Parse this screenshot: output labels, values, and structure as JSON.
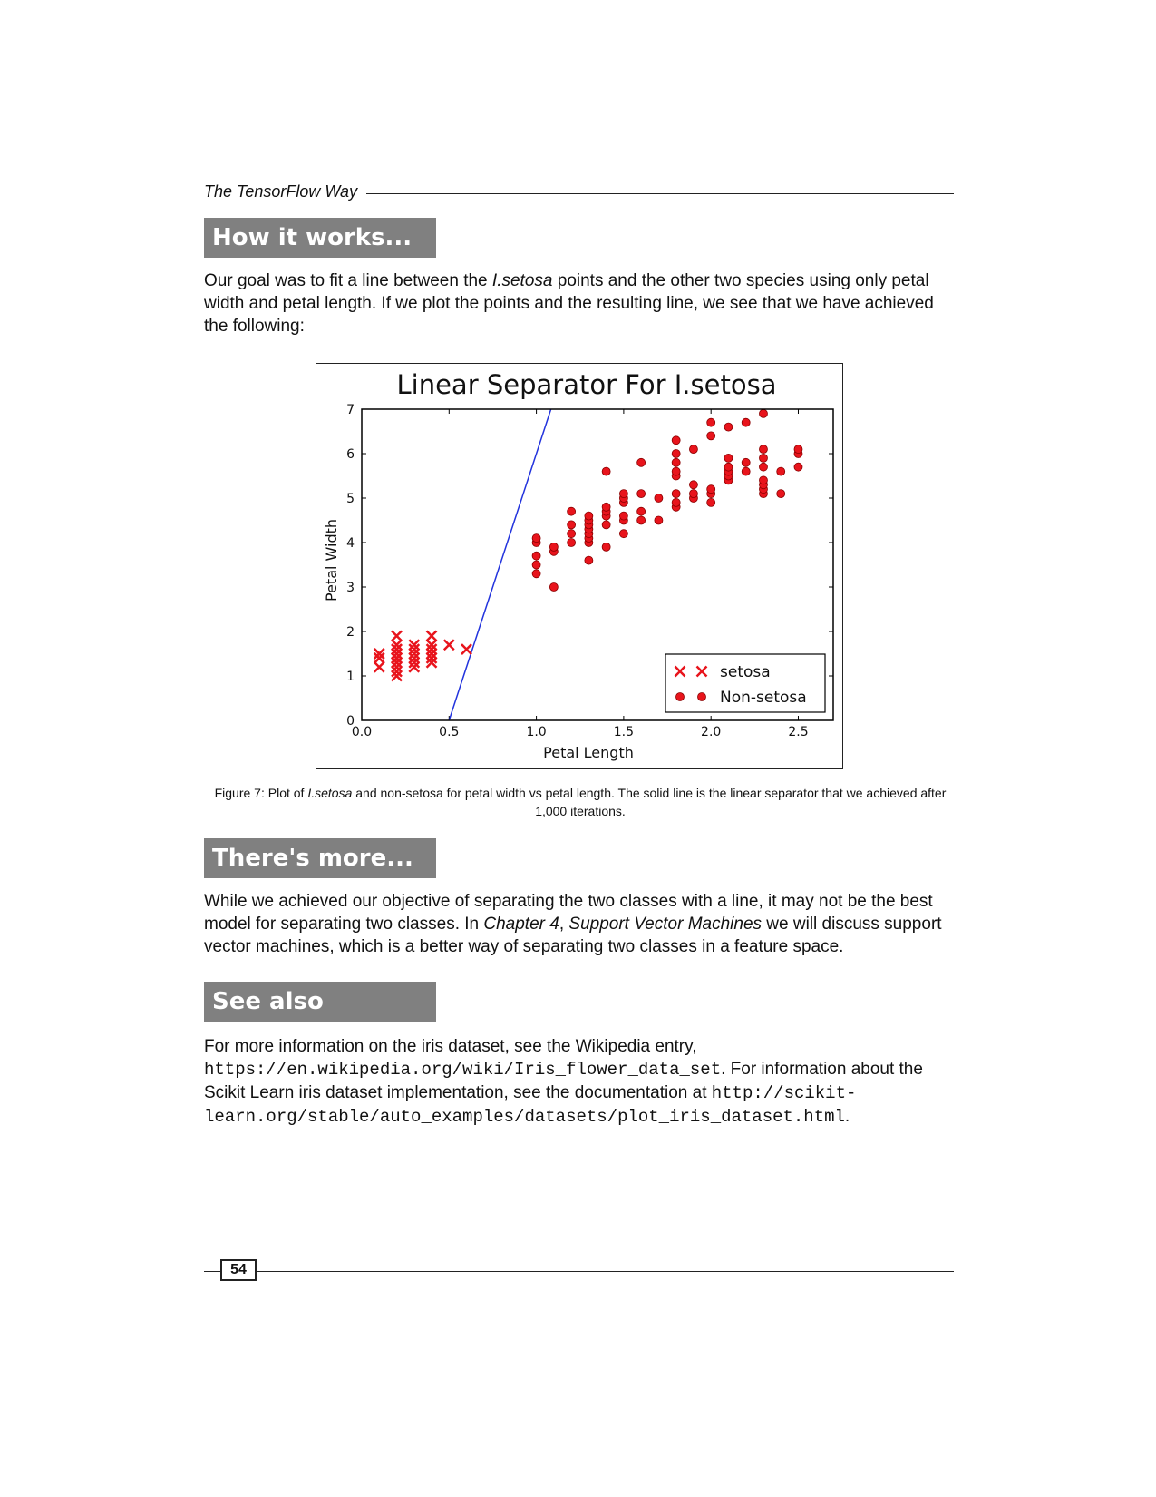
{
  "running_head": {
    "title": "The TensorFlow Way"
  },
  "sections": {
    "how_it_works": {
      "heading": "How it works...",
      "para": {
        "t1": "Our goal was to fit a line between the ",
        "em1": "I.setosa",
        "t2": " points and the other two species using only petal width and petal length. If we plot the points and the resulting line, we see that we have achieved the following:"
      }
    },
    "theres_more": {
      "heading": "There's more...",
      "para": {
        "t1": "While we achieved our objective of separating the two classes with a line, it may not be the best model for separating two classes. In ",
        "em1": "Chapter 4",
        "t2": ", ",
        "em2": "Support Vector Machines",
        "t3": " we will discuss support vector machines, which is a better way of separating two classes in a feature space."
      }
    },
    "see_also": {
      "heading": "See also",
      "para": {
        "t1": "For more information on the iris dataset, see the Wikipedia entry, ",
        "code1": "https://en.wikipedia.org/wiki/Iris_flower_data_set",
        "t2": ". For information about the Scikit Learn iris dataset implementation, see the documentation at ",
        "code2": "http://scikit-learn.org/stable/auto_examples/datasets/plot_iris_dataset.html",
        "t3": "."
      }
    }
  },
  "caption": {
    "t1": "Figure 7: Plot of ",
    "em1": "I.setosa",
    "t2": " and non-setosa for petal width vs petal length. The solid line is the linear separator that we achieved after 1,000 iterations."
  },
  "footer": {
    "page_number": "54"
  },
  "chart_data": {
    "type": "scatter",
    "title": "Linear Separator For I.setosa",
    "xlabel": "Petal Length",
    "ylabel": "Petal Width",
    "xlim": [
      0.0,
      2.7
    ],
    "ylim": [
      0,
      7
    ],
    "xticks": [
      "0.0",
      "0.5",
      "1.0",
      "1.5",
      "2.0",
      "2.5"
    ],
    "yticks": [
      "0",
      "1",
      "2",
      "3",
      "4",
      "5",
      "6",
      "7"
    ],
    "legend_position": "bottom-right",
    "colors": {
      "points": "#e8141c",
      "line": "#2233dd"
    },
    "line": {
      "name": "linear separator",
      "x": [
        0.5,
        1.1
      ],
      "y": [
        0.0,
        7.2
      ]
    },
    "series": [
      {
        "name": "setosa",
        "marker": "x",
        "points": [
          [
            0.1,
            1.4
          ],
          [
            0.1,
            1.5
          ],
          [
            0.1,
            1.2
          ],
          [
            0.1,
            1.5
          ],
          [
            0.1,
            1.4
          ],
          [
            0.2,
            1.4
          ],
          [
            0.2,
            1.3
          ],
          [
            0.2,
            1.5
          ],
          [
            0.2,
            1.4
          ],
          [
            0.2,
            1.7
          ],
          [
            0.2,
            1.6
          ],
          [
            0.2,
            1.2
          ],
          [
            0.2,
            1.1
          ],
          [
            0.2,
            1.0
          ],
          [
            0.2,
            1.9
          ],
          [
            0.2,
            1.5
          ],
          [
            0.2,
            1.3
          ],
          [
            0.2,
            1.6
          ],
          [
            0.2,
            1.4
          ],
          [
            0.3,
            1.4
          ],
          [
            0.3,
            1.3
          ],
          [
            0.3,
            1.7
          ],
          [
            0.3,
            1.5
          ],
          [
            0.3,
            1.6
          ],
          [
            0.3,
            1.2
          ],
          [
            0.4,
            1.7
          ],
          [
            0.4,
            1.5
          ],
          [
            0.4,
            1.3
          ],
          [
            0.4,
            1.9
          ],
          [
            0.4,
            1.6
          ],
          [
            0.4,
            1.4
          ],
          [
            0.5,
            1.7
          ],
          [
            0.6,
            1.6
          ]
        ]
      },
      {
        "name": "Non-setosa",
        "marker": "o",
        "points": [
          [
            1.0,
            3.3
          ],
          [
            1.0,
            3.5
          ],
          [
            1.0,
            3.7
          ],
          [
            1.0,
            4.0
          ],
          [
            1.0,
            4.1
          ],
          [
            1.1,
            3.0
          ],
          [
            1.1,
            3.8
          ],
          [
            1.1,
            3.9
          ],
          [
            1.2,
            4.0
          ],
          [
            1.2,
            4.2
          ],
          [
            1.2,
            4.4
          ],
          [
            1.2,
            4.7
          ],
          [
            1.3,
            3.6
          ],
          [
            1.3,
            4.0
          ],
          [
            1.3,
            4.1
          ],
          [
            1.3,
            4.2
          ],
          [
            1.3,
            4.3
          ],
          [
            1.3,
            4.4
          ],
          [
            1.3,
            4.5
          ],
          [
            1.3,
            4.6
          ],
          [
            1.4,
            3.9
          ],
          [
            1.4,
            4.4
          ],
          [
            1.4,
            4.6
          ],
          [
            1.4,
            4.7
          ],
          [
            1.4,
            4.8
          ],
          [
            1.4,
            5.6
          ],
          [
            1.5,
            4.2
          ],
          [
            1.5,
            4.5
          ],
          [
            1.5,
            4.6
          ],
          [
            1.5,
            4.9
          ],
          [
            1.5,
            5.0
          ],
          [
            1.5,
            5.1
          ],
          [
            1.6,
            4.5
          ],
          [
            1.6,
            4.7
          ],
          [
            1.6,
            5.1
          ],
          [
            1.6,
            5.8
          ],
          [
            1.7,
            4.5
          ],
          [
            1.7,
            5.0
          ],
          [
            1.8,
            4.8
          ],
          [
            1.8,
            4.9
          ],
          [
            1.8,
            5.1
          ],
          [
            1.8,
            5.5
          ],
          [
            1.8,
            5.6
          ],
          [
            1.8,
            5.8
          ],
          [
            1.8,
            6.0
          ],
          [
            1.8,
            6.3
          ],
          [
            1.9,
            5.0
          ],
          [
            1.9,
            5.1
          ],
          [
            1.9,
            5.3
          ],
          [
            1.9,
            6.1
          ],
          [
            2.0,
            4.9
          ],
          [
            2.0,
            5.1
          ],
          [
            2.0,
            5.2
          ],
          [
            2.0,
            6.4
          ],
          [
            2.0,
            6.7
          ],
          [
            2.1,
            5.4
          ],
          [
            2.1,
            5.5
          ],
          [
            2.1,
            5.6
          ],
          [
            2.1,
            5.7
          ],
          [
            2.1,
            5.9
          ],
          [
            2.1,
            6.6
          ],
          [
            2.2,
            5.6
          ],
          [
            2.2,
            5.8
          ],
          [
            2.2,
            6.7
          ],
          [
            2.3,
            5.1
          ],
          [
            2.3,
            5.2
          ],
          [
            2.3,
            5.3
          ],
          [
            2.3,
            5.4
          ],
          [
            2.3,
            5.7
          ],
          [
            2.3,
            5.9
          ],
          [
            2.3,
            6.1
          ],
          [
            2.3,
            6.9
          ],
          [
            2.4,
            5.1
          ],
          [
            2.4,
            5.6
          ],
          [
            2.5,
            5.7
          ],
          [
            2.5,
            6.0
          ],
          [
            2.5,
            6.1
          ]
        ]
      }
    ]
  }
}
